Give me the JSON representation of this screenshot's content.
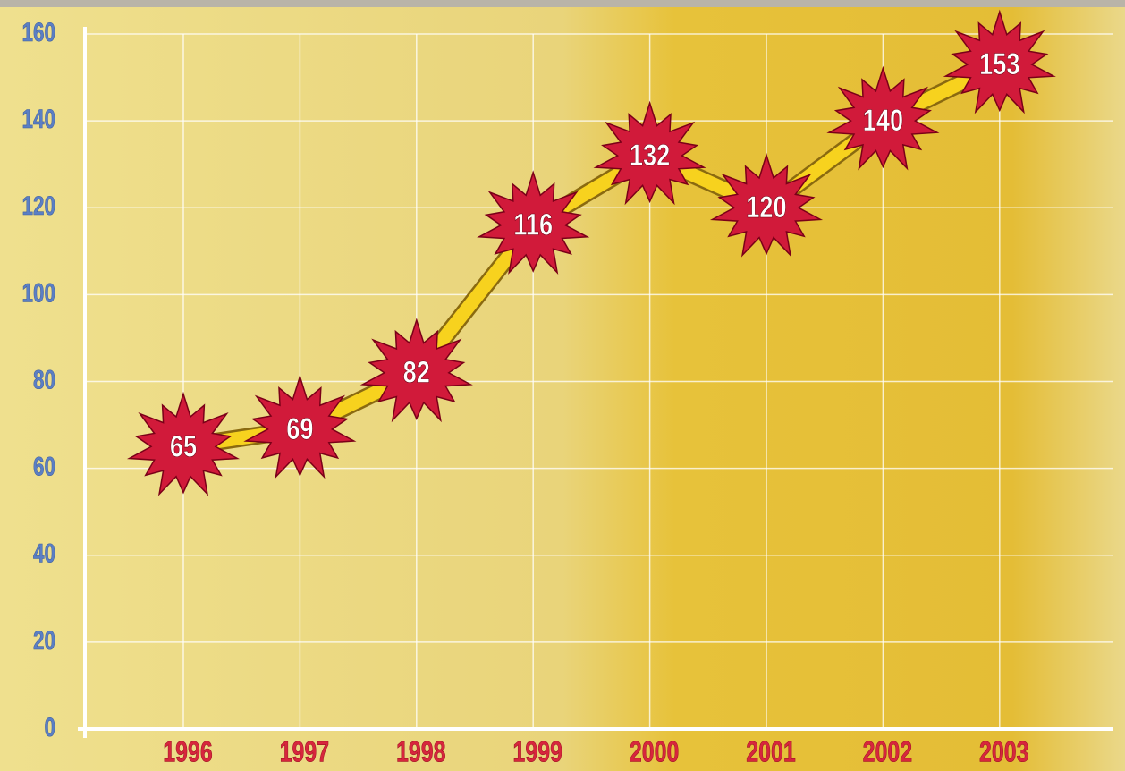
{
  "chart_data": {
    "type": "line",
    "categories": [
      "1996",
      "1997",
      "1998",
      "1999",
      "2000",
      "2001",
      "2002",
      "2003"
    ],
    "values": [
      65,
      69,
      82,
      116,
      132,
      120,
      140,
      153
    ],
    "color": "#f7d21e",
    "marker_color": "#d11a3a",
    "ylim": [
      0,
      160
    ],
    "yticks": [
      0,
      20,
      40,
      60,
      80,
      100,
      120,
      140,
      160
    ],
    "grid": true
  }
}
